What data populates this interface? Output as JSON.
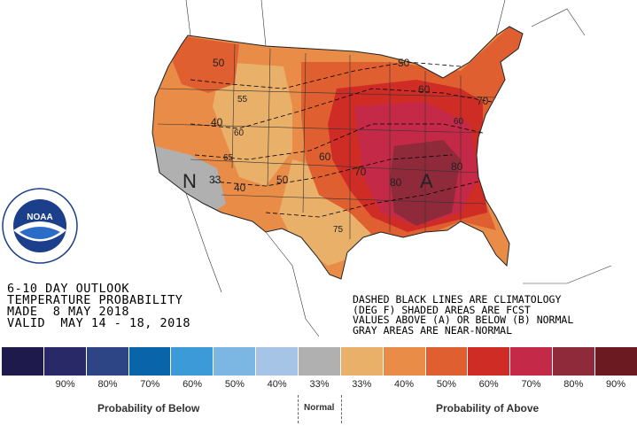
{
  "title": {
    "line1": "6-10 DAY OUTLOOK",
    "line2": "TEMPERATURE PROBABILITY",
    "line3": "MADE  8 MAY 2018",
    "line4": "VALID  MAY 14 - 18, 2018"
  },
  "notes": {
    "line1": "DASHED BLACK LINES ARE CLIMATOLOGY",
    "line2": "(DEG F) SHADED AREAS ARE FCST",
    "line3": "VALUES ABOVE (A) OR BELOW (B) NORMAL",
    "line4": "GRAY AREAS ARE NEAR-NORMAL"
  },
  "logo": {
    "text": "NOAA",
    "ring_text": "NATIONAL OCEANIC AND ATMOSPHERIC ADMINISTRATION · U.S. DEPARTMENT OF COMMERCE"
  },
  "map_labels": {
    "near_normal_marker": "N",
    "above_marker": "A",
    "prob_values": [
      "50",
      "40",
      "33",
      "40",
      "50",
      "60",
      "70",
      "80",
      "60",
      "50",
      "60",
      "70",
      "50",
      "60",
      "70",
      "80"
    ],
    "climo_values": [
      "55",
      "60",
      "65",
      "70",
      "75",
      "80",
      "60",
      "65"
    ]
  },
  "legend": {
    "colors": [
      "#1f1a4c",
      "#2a2968",
      "#2e4585",
      "#0a64aa",
      "#3d9ad9",
      "#7cb6e2",
      "#a6c5e6",
      "#b0b0b0",
      "#e9b06a",
      "#e88c48",
      "#df5f30",
      "#cf2c26",
      "#c42a48",
      "#8f2a3a",
      "#6a1a20"
    ],
    "labels": [
      "",
      "90%",
      "80%",
      "70%",
      "60%",
      "50%",
      "40%",
      "33%",
      "33%",
      "40%",
      "50%",
      "60%",
      "70%",
      "80%",
      "90%"
    ],
    "below_title": "Probability of Below",
    "normal_title": "Normal",
    "above_title": "Probability of Above"
  }
}
